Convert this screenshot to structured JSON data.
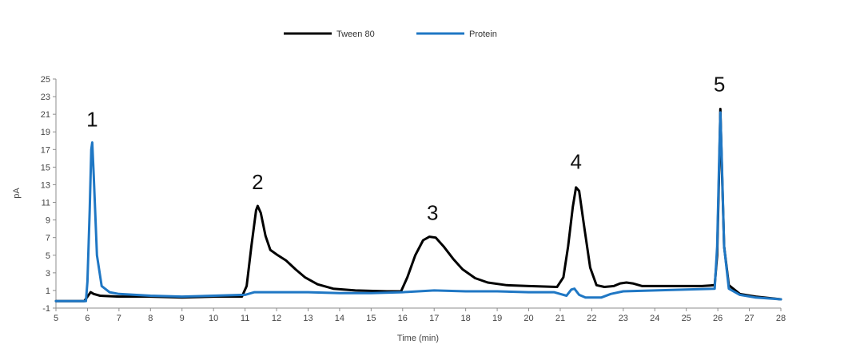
{
  "chart_data": {
    "type": "line",
    "xlabel": "Time (min)",
    "ylabel": "pA",
    "xlim": [
      5,
      28
    ],
    "ylim": [
      -1,
      25
    ],
    "x_ticks": [
      "5",
      "6",
      "7",
      "8",
      "9",
      "10",
      "11",
      "12",
      "13",
      "14",
      "15",
      "16",
      "17",
      "18",
      "19",
      "20",
      "21",
      "22",
      "23",
      "24",
      "25",
      "26",
      "27",
      "28"
    ],
    "y_ticks": [
      "-1",
      "1",
      "3",
      "5",
      "7",
      "9",
      "11",
      "13",
      "15",
      "17",
      "19",
      "21",
      "23",
      "25"
    ],
    "legend_position": "top-center",
    "series": [
      {
        "name": "Tween 80",
        "color": "#000000",
        "points": [
          [
            5.0,
            -0.2
          ],
          [
            5.9,
            -0.2
          ],
          [
            6.0,
            0.3
          ],
          [
            6.1,
            0.8
          ],
          [
            6.2,
            0.6
          ],
          [
            6.4,
            0.4
          ],
          [
            7.0,
            0.3
          ],
          [
            8.0,
            0.3
          ],
          [
            9.0,
            0.2
          ],
          [
            10.0,
            0.3
          ],
          [
            10.9,
            0.3
          ],
          [
            11.05,
            1.5
          ],
          [
            11.2,
            6.0
          ],
          [
            11.35,
            10.1
          ],
          [
            11.4,
            10.6
          ],
          [
            11.5,
            9.8
          ],
          [
            11.65,
            7.2
          ],
          [
            11.8,
            5.6
          ],
          [
            12.0,
            5.1
          ],
          [
            12.3,
            4.4
          ],
          [
            12.6,
            3.4
          ],
          [
            12.9,
            2.5
          ],
          [
            13.3,
            1.7
          ],
          [
            13.8,
            1.2
          ],
          [
            14.5,
            1.0
          ],
          [
            15.5,
            0.9
          ],
          [
            15.95,
            0.9
          ],
          [
            16.15,
            2.5
          ],
          [
            16.4,
            5.0
          ],
          [
            16.65,
            6.7
          ],
          [
            16.85,
            7.1
          ],
          [
            17.05,
            7.0
          ],
          [
            17.3,
            6.0
          ],
          [
            17.6,
            4.6
          ],
          [
            17.9,
            3.4
          ],
          [
            18.3,
            2.4
          ],
          [
            18.7,
            1.9
          ],
          [
            19.3,
            1.6
          ],
          [
            20.0,
            1.5
          ],
          [
            20.9,
            1.4
          ],
          [
            21.1,
            2.5
          ],
          [
            21.25,
            6.0
          ],
          [
            21.4,
            10.5
          ],
          [
            21.5,
            12.7
          ],
          [
            21.6,
            12.3
          ],
          [
            21.75,
            8.5
          ],
          [
            21.95,
            3.6
          ],
          [
            22.15,
            1.6
          ],
          [
            22.4,
            1.4
          ],
          [
            22.7,
            1.5
          ],
          [
            22.9,
            1.8
          ],
          [
            23.1,
            1.9
          ],
          [
            23.3,
            1.8
          ],
          [
            23.6,
            1.5
          ],
          [
            24.5,
            1.5
          ],
          [
            25.5,
            1.5
          ],
          [
            25.9,
            1.6
          ],
          [
            25.98,
            5.0
          ],
          [
            26.05,
            16.0
          ],
          [
            26.08,
            21.6
          ],
          [
            26.12,
            16.0
          ],
          [
            26.2,
            6.0
          ],
          [
            26.35,
            1.6
          ],
          [
            26.7,
            0.6
          ],
          [
            27.2,
            0.3
          ],
          [
            28.0,
            0.0
          ]
        ]
      },
      {
        "name": "Protein",
        "color": "#1f77c4",
        "points": [
          [
            5.0,
            -0.2
          ],
          [
            5.95,
            -0.2
          ],
          [
            6.0,
            2.0
          ],
          [
            6.07,
            10.0
          ],
          [
            6.12,
            17.0
          ],
          [
            6.15,
            17.8
          ],
          [
            6.2,
            14.0
          ],
          [
            6.3,
            5.0
          ],
          [
            6.45,
            1.5
          ],
          [
            6.7,
            0.8
          ],
          [
            7.0,
            0.6
          ],
          [
            8.0,
            0.4
          ],
          [
            9.0,
            0.3
          ],
          [
            10.0,
            0.4
          ],
          [
            11.0,
            0.5
          ],
          [
            11.3,
            0.8
          ],
          [
            12.0,
            0.8
          ],
          [
            13.0,
            0.8
          ],
          [
            14.0,
            0.7
          ],
          [
            15.0,
            0.7
          ],
          [
            16.0,
            0.8
          ],
          [
            17.0,
            1.0
          ],
          [
            18.0,
            0.9
          ],
          [
            19.0,
            0.9
          ],
          [
            20.0,
            0.8
          ],
          [
            20.8,
            0.8
          ],
          [
            21.0,
            0.6
          ],
          [
            21.2,
            0.4
          ],
          [
            21.35,
            1.1
          ],
          [
            21.45,
            1.2
          ],
          [
            21.6,
            0.5
          ],
          [
            21.8,
            0.2
          ],
          [
            22.3,
            0.2
          ],
          [
            22.6,
            0.6
          ],
          [
            23.0,
            0.9
          ],
          [
            24.0,
            1.0
          ],
          [
            25.0,
            1.1
          ],
          [
            25.9,
            1.2
          ],
          [
            25.98,
            6.0
          ],
          [
            26.05,
            17.0
          ],
          [
            26.08,
            21.2
          ],
          [
            26.12,
            16.5
          ],
          [
            26.2,
            6.0
          ],
          [
            26.35,
            1.2
          ],
          [
            26.7,
            0.5
          ],
          [
            27.2,
            0.2
          ],
          [
            28.0,
            0.0
          ]
        ]
      }
    ],
    "annotations": [
      {
        "text": "1",
        "x": 6.15,
        "y": 19.6
      },
      {
        "text": "2",
        "x": 11.4,
        "y": 12.5
      },
      {
        "text": "3",
        "x": 16.95,
        "y": 9.0
      },
      {
        "text": "4",
        "x": 21.5,
        "y": 14.8
      },
      {
        "text": "5",
        "x": 26.05,
        "y": 23.6
      }
    ]
  }
}
